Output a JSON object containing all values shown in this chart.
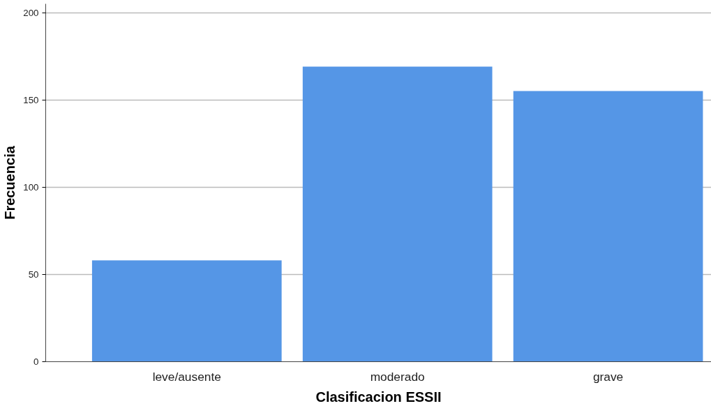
{
  "chart_data": {
    "type": "bar",
    "xlabel": "Clasificacion ESSII",
    "ylabel": "Frecuencia",
    "categories": [
      "leve/ausente",
      "moderado",
      "grave"
    ],
    "values": [
      58,
      169,
      155
    ],
    "color": "#5596e6",
    "ylim": [
      0,
      205
    ],
    "yticks": [
      0,
      50,
      100,
      150,
      200
    ],
    "grid": "y"
  }
}
